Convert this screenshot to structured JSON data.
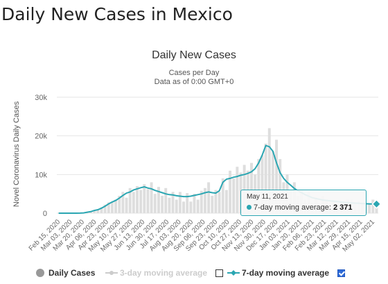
{
  "page": {
    "heading": "Daily New Cases in Mexico"
  },
  "colors": {
    "bars": "#dedede",
    "line7": "#2aa6b2",
    "line3": "#d6d6d6",
    "grid": "#e6e6e6",
    "axis_text": "#666666"
  },
  "chart_data": {
    "type": "bar",
    "title": "Daily New Cases",
    "subtitle_lines": [
      "Cases per Day",
      "Data as of 0:00 GMT+0"
    ],
    "ylabel": "Novel Coronavirus Daily Cases",
    "xlabel": "",
    "ylim": [
      0,
      30000
    ],
    "y_ticks": [
      "0",
      "10k",
      "20k",
      "30k"
    ],
    "y_tick_values": [
      0,
      10000,
      20000,
      30000
    ],
    "x_ticks": [
      "Feb 15, 2020",
      "Mar 03, 2020",
      "Mar 20, 2020",
      "Apr 06, 2020",
      "Apr 23, 2020",
      "May 10, 2020",
      "May 27, 2020",
      "Jun 13, 2020",
      "Jun 30, 2020",
      "Jul 17, 2020",
      "Aug 03, 2020",
      "Aug 20, 2020",
      "Sep 06, 2020",
      "Sep 23, 2020",
      "Oct 10, 2020",
      "Oct 27, 2020",
      "Nov 13, 2020",
      "Nov 30, 2020",
      "Dec 17, 2020",
      "Jan 03, 2021",
      "Jan 20, 2021",
      "Feb 06, 2021",
      "Feb 23, 2021",
      "Mar 12, 2021",
      "Mar 29, 2021",
      "Apr 15, 2021",
      "May 02, 2021"
    ],
    "grid": true,
    "series": [
      {
        "name": "Daily Cases",
        "type": "bar",
        "values": [
          0,
          0,
          0,
          0,
          0,
          0,
          10,
          80,
          300,
          500,
          800,
          1000,
          1500,
          2200,
          2800,
          3000,
          3500,
          4500,
          5500,
          4000,
          6500,
          5500,
          7000,
          6000,
          7500,
          6200,
          8000,
          5000,
          6800,
          4500,
          6500,
          4000,
          5500,
          3500,
          5500,
          3000,
          5200,
          3000,
          5000,
          3500,
          5800,
          6500,
          8000,
          4500,
          6000,
          5500,
          9000,
          6000,
          11000,
          9000,
          12000,
          10500,
          12500,
          11000,
          13000,
          10000,
          14000,
          15000,
          18000,
          22000,
          16000,
          19000,
          14000,
          8000,
          10000,
          6000,
          8000,
          4500,
          6000,
          3500,
          5500,
          2500,
          4000,
          2000,
          4500,
          3500,
          1500,
          3000,
          2500,
          1500,
          2500,
          3500,
          3500,
          2500,
          3000,
          2500,
          2400,
          2400,
          3500,
          2000
        ]
      },
      {
        "name": "3-day moving average",
        "visible": false,
        "values": []
      },
      {
        "name": "7-day moving average",
        "type": "line",
        "values": [
          0,
          0,
          0,
          0,
          0,
          0,
          10,
          80,
          250,
          400,
          700,
          900,
          1300,
          1800,
          2400,
          2900,
          3300,
          3900,
          4600,
          5200,
          5500,
          6000,
          6300,
          6600,
          6800,
          6500,
          6300,
          5900,
          5600,
          5300,
          5000,
          4800,
          4700,
          4500,
          4400,
          4300,
          4300,
          4400,
          4600,
          4800,
          5000,
          5300,
          5500,
          5300,
          5200,
          5800,
          8000,
          8800,
          9000,
          9300,
          9500,
          9800,
          10000,
          10300,
          10700,
          11500,
          13000,
          15000,
          17500,
          17200,
          16000,
          13000,
          10500,
          9000,
          8000,
          7200,
          6400,
          5800,
          5300,
          4800,
          4400,
          4000,
          3800,
          3600,
          3400,
          3300,
          3200,
          3100,
          3000,
          2900,
          2800,
          2700,
          2650,
          2600,
          2550,
          2500,
          2450,
          2400,
          2380,
          2371
        ]
      }
    ]
  },
  "tooltip": {
    "date": "May 11, 2021",
    "label": "7-day moving average: ",
    "value": "2 371"
  },
  "legend": {
    "daily": "Daily Cases",
    "ma3": "3-day moving average",
    "ma7": "7-day moving average"
  }
}
